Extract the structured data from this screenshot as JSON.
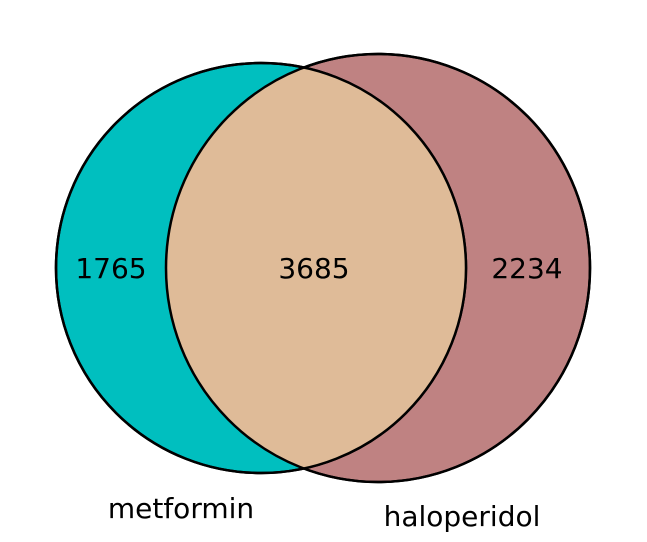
{
  "venn": {
    "sets": [
      {
        "name": "metformin",
        "color": "#00BFBF"
      },
      {
        "name": "haloperidol",
        "color": "#BF8282"
      }
    ],
    "counts": {
      "only_left": "1765",
      "intersection": "3685",
      "only_right": "2234"
    },
    "intersection_color": "#DFBB98",
    "outline_color": "#000000"
  }
}
